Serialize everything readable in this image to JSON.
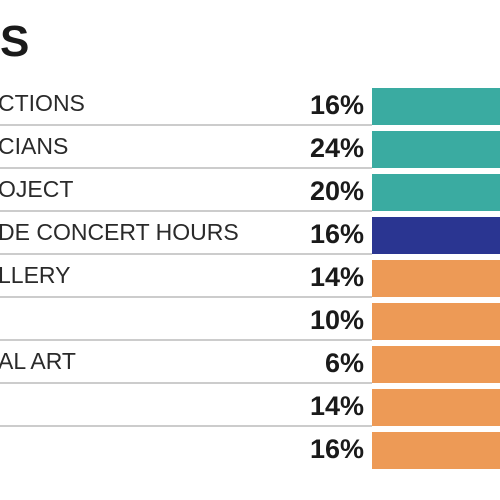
{
  "title": "S",
  "chart_data": {
    "type": "bar",
    "title": "S",
    "xlabel": "",
    "ylabel": "",
    "value_suffix": "%",
    "categories": [
      "CTIONS",
      "CIANS",
      "OJECT",
      "DE CONCERT HOURS",
      "LLERY",
      "",
      "AL ART",
      "",
      ""
    ],
    "values": [
      16,
      24,
      20,
      16,
      14,
      10,
      6,
      14,
      16
    ],
    "bar_colors": [
      "#3aaba1",
      "#3aaba1",
      "#3aaba1",
      "#2a3591",
      "#ed9a56",
      "#ed9a56",
      "#ed9a56",
      "#ed9a56",
      "#ed9a56"
    ],
    "divider_color": "#9a9a9a"
  }
}
